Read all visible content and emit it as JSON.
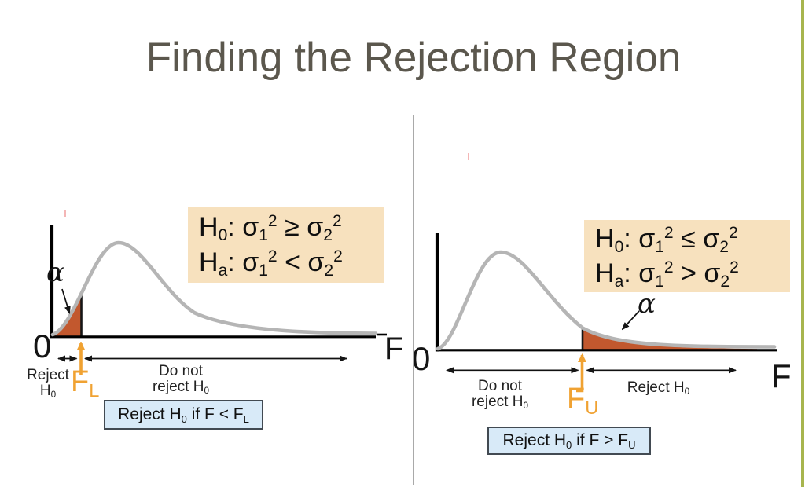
{
  "title": "Finding the Rejection Region",
  "colors": {
    "title_text": "#5b574d",
    "curve_gray": "#b5b5b5",
    "shade_orange": "#c2582e",
    "accent_orange": "#f0a232",
    "hypothesis_box_bg": "#f7e1be",
    "rule_box_bg": "#d8eaf8",
    "rule_box_border": "#424a52",
    "sidebar_green": "#a7b54e",
    "divider_gray": "#a9a9a9",
    "pink_tick": "#f2a3a3"
  },
  "left_panel": {
    "hypothesis_box": {
      "h0": [
        {
          "t": "H"
        },
        {
          "sub": "0"
        },
        {
          "t": ": σ"
        },
        {
          "sub": "1"
        },
        {
          "sup": "2"
        },
        {
          "t": " ≥ σ"
        },
        {
          "sub": "2"
        },
        {
          "sup": "2"
        }
      ],
      "ha": [
        {
          "t": "H"
        },
        {
          "sub": "a"
        },
        {
          "t": ": σ"
        },
        {
          "sub": "1"
        },
        {
          "sup": "2"
        },
        {
          "t": " < σ"
        },
        {
          "sub": "2"
        },
        {
          "sup": "2"
        }
      ]
    },
    "alpha_label": "α",
    "origin_label": "0",
    "axis_label": "F",
    "critical_value_label": [
      {
        "t": "F"
      },
      {
        "sub": "L"
      }
    ],
    "reject_region_label": [
      {
        "t": "Reject"
      },
      {
        "br": true
      },
      {
        "t": "H"
      },
      {
        "sub": "0"
      }
    ],
    "do_not_reject_label": [
      {
        "t": "Do not"
      },
      {
        "br": true
      },
      {
        "t": "reject H"
      },
      {
        "sub": "0"
      }
    ],
    "decision_rule": [
      {
        "t": "Reject H"
      },
      {
        "sub": "0"
      },
      {
        "t": " if F < F"
      },
      {
        "sub": "L"
      }
    ]
  },
  "right_panel": {
    "hypothesis_box": {
      "h0": [
        {
          "t": "H"
        },
        {
          "sub": "0"
        },
        {
          "t": ": σ"
        },
        {
          "sub": "1"
        },
        {
          "sup": "2"
        },
        {
          "t": " ≤ σ"
        },
        {
          "sub": "2"
        },
        {
          "sup": "2"
        }
      ],
      "ha": [
        {
          "t": "H"
        },
        {
          "sub": "a"
        },
        {
          "t": ": σ"
        },
        {
          "sub": "1"
        },
        {
          "sup": "2"
        },
        {
          "t": " > σ"
        },
        {
          "sub": "2"
        },
        {
          "sup": "2"
        }
      ]
    },
    "alpha_label": "α",
    "origin_label": "0",
    "axis_label": "F",
    "critical_value_label": [
      {
        "t": "F"
      },
      {
        "sub": "U"
      }
    ],
    "do_not_reject_label": [
      {
        "t": "Do not"
      },
      {
        "br": true
      },
      {
        "t": "reject H"
      },
      {
        "sub": "0"
      }
    ],
    "reject_region_label": [
      {
        "t": "Reject H"
      },
      {
        "sub": "0"
      }
    ],
    "decision_rule": [
      {
        "t": "Reject H"
      },
      {
        "sub": "0"
      },
      {
        "t": " if F > F"
      },
      {
        "sub": "U"
      }
    ]
  }
}
